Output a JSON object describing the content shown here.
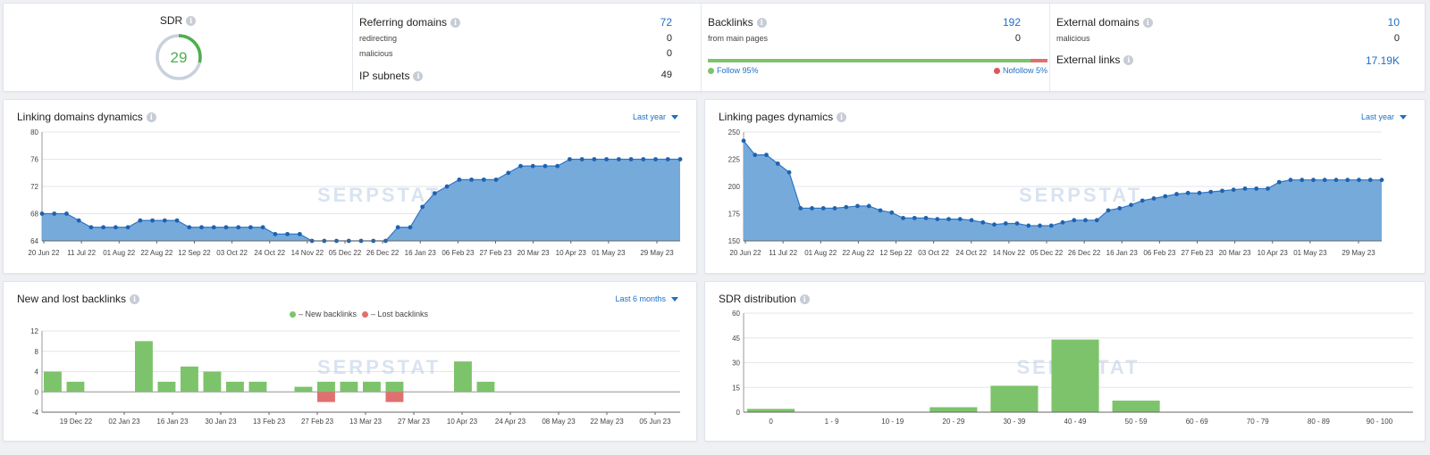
{
  "colors": {
    "accent": "#1f6fc5",
    "area": "#6fa5d9",
    "line": "#2f76c4",
    "green": "#7dc36b",
    "red": "#e07070"
  },
  "sdr": {
    "title": "SDR",
    "value": "29",
    "ratio": 0.29
  },
  "referring": {
    "title": "Referring domains",
    "value": "72",
    "rows": [
      {
        "label": "redirecting",
        "value": "0"
      },
      {
        "label": "malicious",
        "value": "0"
      }
    ],
    "ip_title": "IP subnets",
    "ip_value": "49"
  },
  "backlinks": {
    "title": "Backlinks",
    "value": "192",
    "sub_label": "from main pages",
    "sub_value": "0",
    "follow_label": "Follow 95%",
    "nofollow_label": "Nofollow 5%",
    "follow_fraction": 0.95
  },
  "external": {
    "title": "External domains",
    "value": "10",
    "sub_label": "malicious",
    "sub_value": "0",
    "links_title": "External links",
    "links_value": "17.19K"
  },
  "linking_domains": {
    "title": "Linking domains dynamics",
    "period": "Last year"
  },
  "linking_pages": {
    "title": "Linking pages dynamics",
    "period": "Last year"
  },
  "new_lost": {
    "title": "New and lost backlinks",
    "period": "Last 6 months",
    "legend_new": "– New backlinks",
    "legend_lost": "– Lost backlinks"
  },
  "sdr_dist": {
    "title": "SDR distribution"
  },
  "watermark": "SERPSTAT",
  "chart_data": [
    {
      "type": "area",
      "title": "Linking domains dynamics",
      "ylim": [
        64,
        80
      ],
      "yticks": [
        64,
        68,
        72,
        76,
        80
      ],
      "x_labels": [
        "20 Jun 22",
        "11 Jul 22",
        "01 Aug 22",
        "22 Aug 22",
        "12 Sep 22",
        "03 Oct 22",
        "24 Oct 22",
        "14 Nov 22",
        "05 Dec 22",
        "26 Dec 22",
        "16 Jan 23",
        "06 Feb 23",
        "27 Feb 23",
        "20 Mar 23",
        "10 Apr 23",
        "01 May 23",
        "29 May 23"
      ],
      "values": [
        68,
        68,
        68,
        67,
        66,
        66,
        66,
        66,
        67,
        67,
        67,
        67,
        66,
        66,
        66,
        66,
        66,
        66,
        66,
        65,
        65,
        65,
        64,
        64,
        64,
        64,
        64,
        64,
        64,
        66,
        66,
        69,
        71,
        72,
        73,
        73,
        73,
        73,
        74,
        75,
        75,
        75,
        75,
        76,
        76,
        76,
        76,
        76,
        76,
        76,
        76,
        76,
        76
      ]
    },
    {
      "type": "area",
      "title": "Linking pages dynamics",
      "ylim": [
        150,
        250
      ],
      "yticks": [
        150,
        175,
        200,
        225,
        250
      ],
      "x_labels": [
        "20 Jun 22",
        "11 Jul 22",
        "01 Aug 22",
        "22 Aug 22",
        "12 Sep 22",
        "03 Oct 22",
        "24 Oct 22",
        "14 Nov 22",
        "05 Dec 22",
        "26 Dec 22",
        "16 Jan 23",
        "06 Feb 23",
        "27 Feb 23",
        "20 Mar 23",
        "10 Apr 23",
        "01 May 23",
        "29 May 23"
      ],
      "values": [
        242,
        229,
        229,
        221,
        213,
        180,
        180,
        180,
        180,
        181,
        182,
        182,
        178,
        176,
        171,
        171,
        171,
        170,
        170,
        170,
        169,
        167,
        165,
        166,
        166,
        164,
        164,
        164,
        167,
        169,
        169,
        169,
        178,
        180,
        183,
        187,
        189,
        191,
        193,
        194,
        194,
        195,
        196,
        197,
        198,
        198,
        198,
        204,
        206,
        206,
        206,
        206,
        206,
        206,
        206,
        206,
        206
      ]
    },
    {
      "type": "bar",
      "title": "New and lost backlinks",
      "ylim": [
        -4,
        12
      ],
      "yticks": [
        -4,
        0,
        4,
        8,
        12
      ],
      "x_labels": [
        "19 Dec 22",
        "02 Jan 23",
        "16 Jan 23",
        "30 Jan 23",
        "13 Feb 23",
        "27 Feb 23",
        "13 Mar 23",
        "27 Mar 23",
        "10 Apr 23",
        "24 Apr 23",
        "08 May 23",
        "22 May 23",
        "05 Jun 23"
      ],
      "series": [
        {
          "name": "New backlinks",
          "values": [
            4,
            2,
            0,
            0,
            10,
            2,
            5,
            4,
            2,
            2,
            0,
            1,
            2,
            2,
            2,
            2,
            0,
            0,
            6,
            2,
            0,
            0,
            0,
            0,
            0,
            0,
            0,
            0
          ]
        },
        {
          "name": "Lost backlinks",
          "values": [
            0,
            0,
            0,
            0,
            0,
            0,
            0,
            0,
            0,
            0,
            0,
            0,
            -2,
            0,
            0,
            -2,
            0,
            0,
            0,
            0,
            0,
            0,
            0,
            0,
            0,
            0,
            0,
            0
          ]
        }
      ]
    },
    {
      "type": "bar",
      "title": "SDR distribution",
      "ylim": [
        0,
        60
      ],
      "yticks": [
        0,
        15,
        30,
        45,
        60
      ],
      "categories": [
        "0",
        "1 - 9",
        "10 - 19",
        "20 - 29",
        "30 - 39",
        "40 - 49",
        "50 - 59",
        "60 - 69",
        "70 - 79",
        "80 - 89",
        "90 - 100"
      ],
      "values": [
        2,
        0,
        0,
        3,
        16,
        44,
        7,
        0,
        0,
        0,
        0
      ]
    }
  ]
}
